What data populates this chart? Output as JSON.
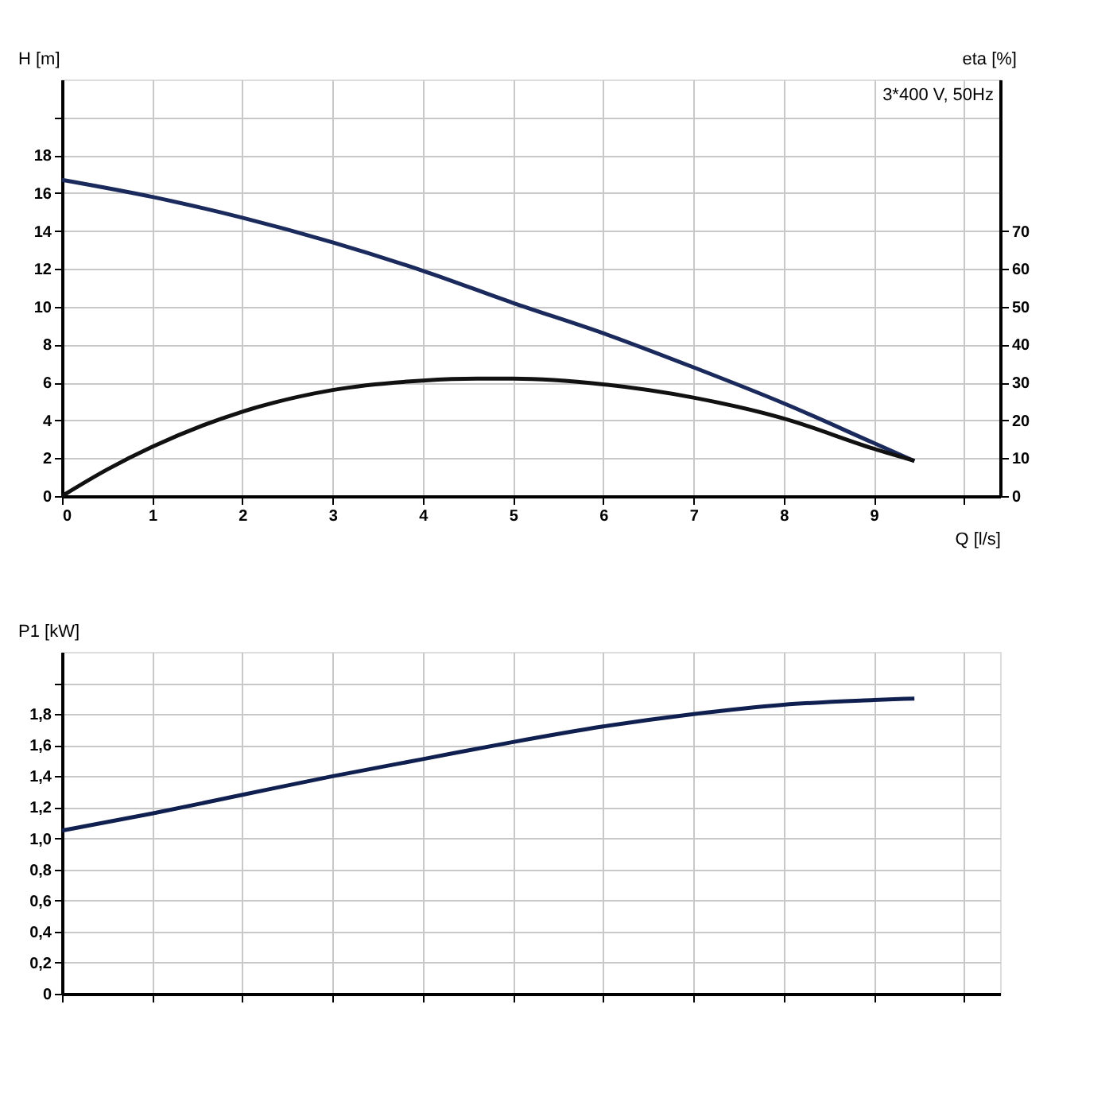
{
  "chart_data": [
    {
      "type": "line",
      "xlabel": "Q [l/s]",
      "ylabel": "H [m]",
      "y2label": "eta [%]",
      "annotations": [
        "3*400 V, 50Hz"
      ],
      "xlim": [
        0,
        10.4
      ],
      "xticks": [
        0,
        1,
        2,
        3,
        4,
        5,
        6,
        7,
        8,
        9,
        {
          "value": 10,
          "label": null
        }
      ],
      "ylim": [
        0,
        22
      ],
      "yticks": [
        0,
        2,
        4,
        6,
        8,
        10,
        12,
        14,
        16,
        18,
        {
          "value": 20,
          "label": null
        }
      ],
      "y2lim": [
        0,
        110
      ],
      "y2ticks": [
        0,
        10,
        20,
        30,
        40,
        50,
        60,
        70
      ],
      "grid": true,
      "marker": "none",
      "line_style": "solid",
      "series": [
        {
          "color": "#1b2a5c",
          "x": [
            0,
            1,
            2,
            3,
            4,
            5,
            6,
            7,
            8,
            9,
            9.45
          ],
          "values": [
            16.7,
            15.8,
            14.7,
            13.4,
            11.9,
            10.2,
            8.6,
            6.8,
            4.9,
            2.8,
            1.85
          ]
        },
        {
          "color": "#111111",
          "axis": "y2",
          "x": [
            0,
            0.5,
            1,
            2,
            3,
            4,
            4.6,
            5,
            6,
            7,
            8,
            9,
            9.45
          ],
          "values": [
            0,
            7,
            13,
            22.3,
            28,
            30.5,
            31,
            31,
            29.5,
            26,
            20.5,
            12.5,
            9.3
          ]
        }
      ]
    },
    {
      "type": "line",
      "ylabel": "P1 [kW]",
      "tick_labels": "y",
      "xlim": [
        0,
        10.4
      ],
      "xticks": [
        0,
        1,
        2,
        3,
        4,
        5,
        6,
        7,
        8,
        9,
        10
      ],
      "ylim": [
        0,
        2.2
      ],
      "yticks": [
        0,
        {
          "value": 0.2,
          "label": "0,2"
        },
        {
          "value": 0.4,
          "label": "0,4"
        },
        {
          "value": 0.6,
          "label": "0,6"
        },
        {
          "value": 0.8,
          "label": "0,8"
        },
        {
          "value": 1.0,
          "label": "1,0"
        },
        {
          "value": 1.2,
          "label": "1,2"
        },
        {
          "value": 1.4,
          "label": "1,4"
        },
        {
          "value": 1.6,
          "label": "1,6"
        },
        {
          "value": 1.8,
          "label": "1,8"
        },
        {
          "value": 2.0,
          "label": null
        }
      ],
      "grid": true,
      "marker": "none",
      "line_style": "solid",
      "series": [
        {
          "color": "#0f1f4f",
          "x": [
            0,
            1,
            2,
            3,
            4,
            5,
            6,
            7,
            8,
            9,
            9.45
          ],
          "values": [
            1.05,
            1.16,
            1.28,
            1.4,
            1.51,
            1.62,
            1.72,
            1.8,
            1.86,
            1.89,
            1.9
          ]
        }
      ]
    }
  ]
}
